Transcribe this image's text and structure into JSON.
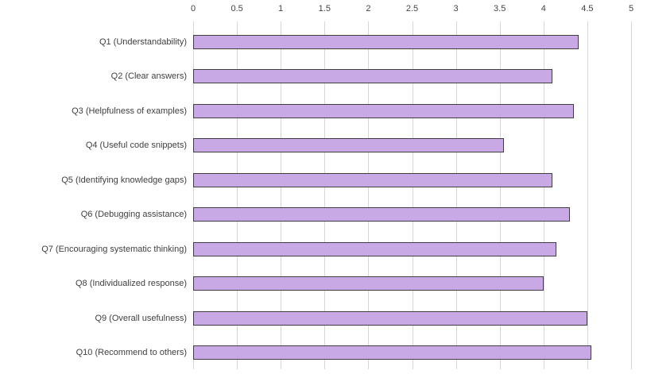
{
  "chart_data": {
    "type": "bar",
    "orientation": "horizontal",
    "title": "",
    "xlabel": "",
    "ylabel": "",
    "categories": [
      "Q1 (Understandability)",
      "Q2 (Clear answers)",
      "Q3 (Helpfulness of examples)",
      "Q4 (Useful code snippets)",
      "Q5 (Identifying knowledge gaps)",
      "Q6 (Debugging assistance)",
      "Q7 (Encouraging systematic thinking)",
      "Q8 (Individualized response)",
      "Q9 (Overall usefulness)",
      "Q10 (Recommend to others)"
    ],
    "values": [
      4.4,
      4.1,
      4.35,
      3.55,
      4.1,
      4.3,
      4.15,
      4.0,
      4.5,
      4.55
    ],
    "xlim": [
      0,
      5
    ],
    "xtick_labels": [
      "0",
      "0.5",
      "1",
      "1.5",
      "2",
      "2.5",
      "3",
      "3.5",
      "4",
      "4.5",
      "5"
    ],
    "xtick_step": 0.5,
    "grid": true,
    "legend": false,
    "colors": {
      "bar_fill": "#c9a8e6",
      "bar_border": "#3f3f3f",
      "gridline": "#d6d6d6",
      "axis_text": "#444444",
      "category_text": "#404040",
      "background": "#ffffff"
    }
  }
}
